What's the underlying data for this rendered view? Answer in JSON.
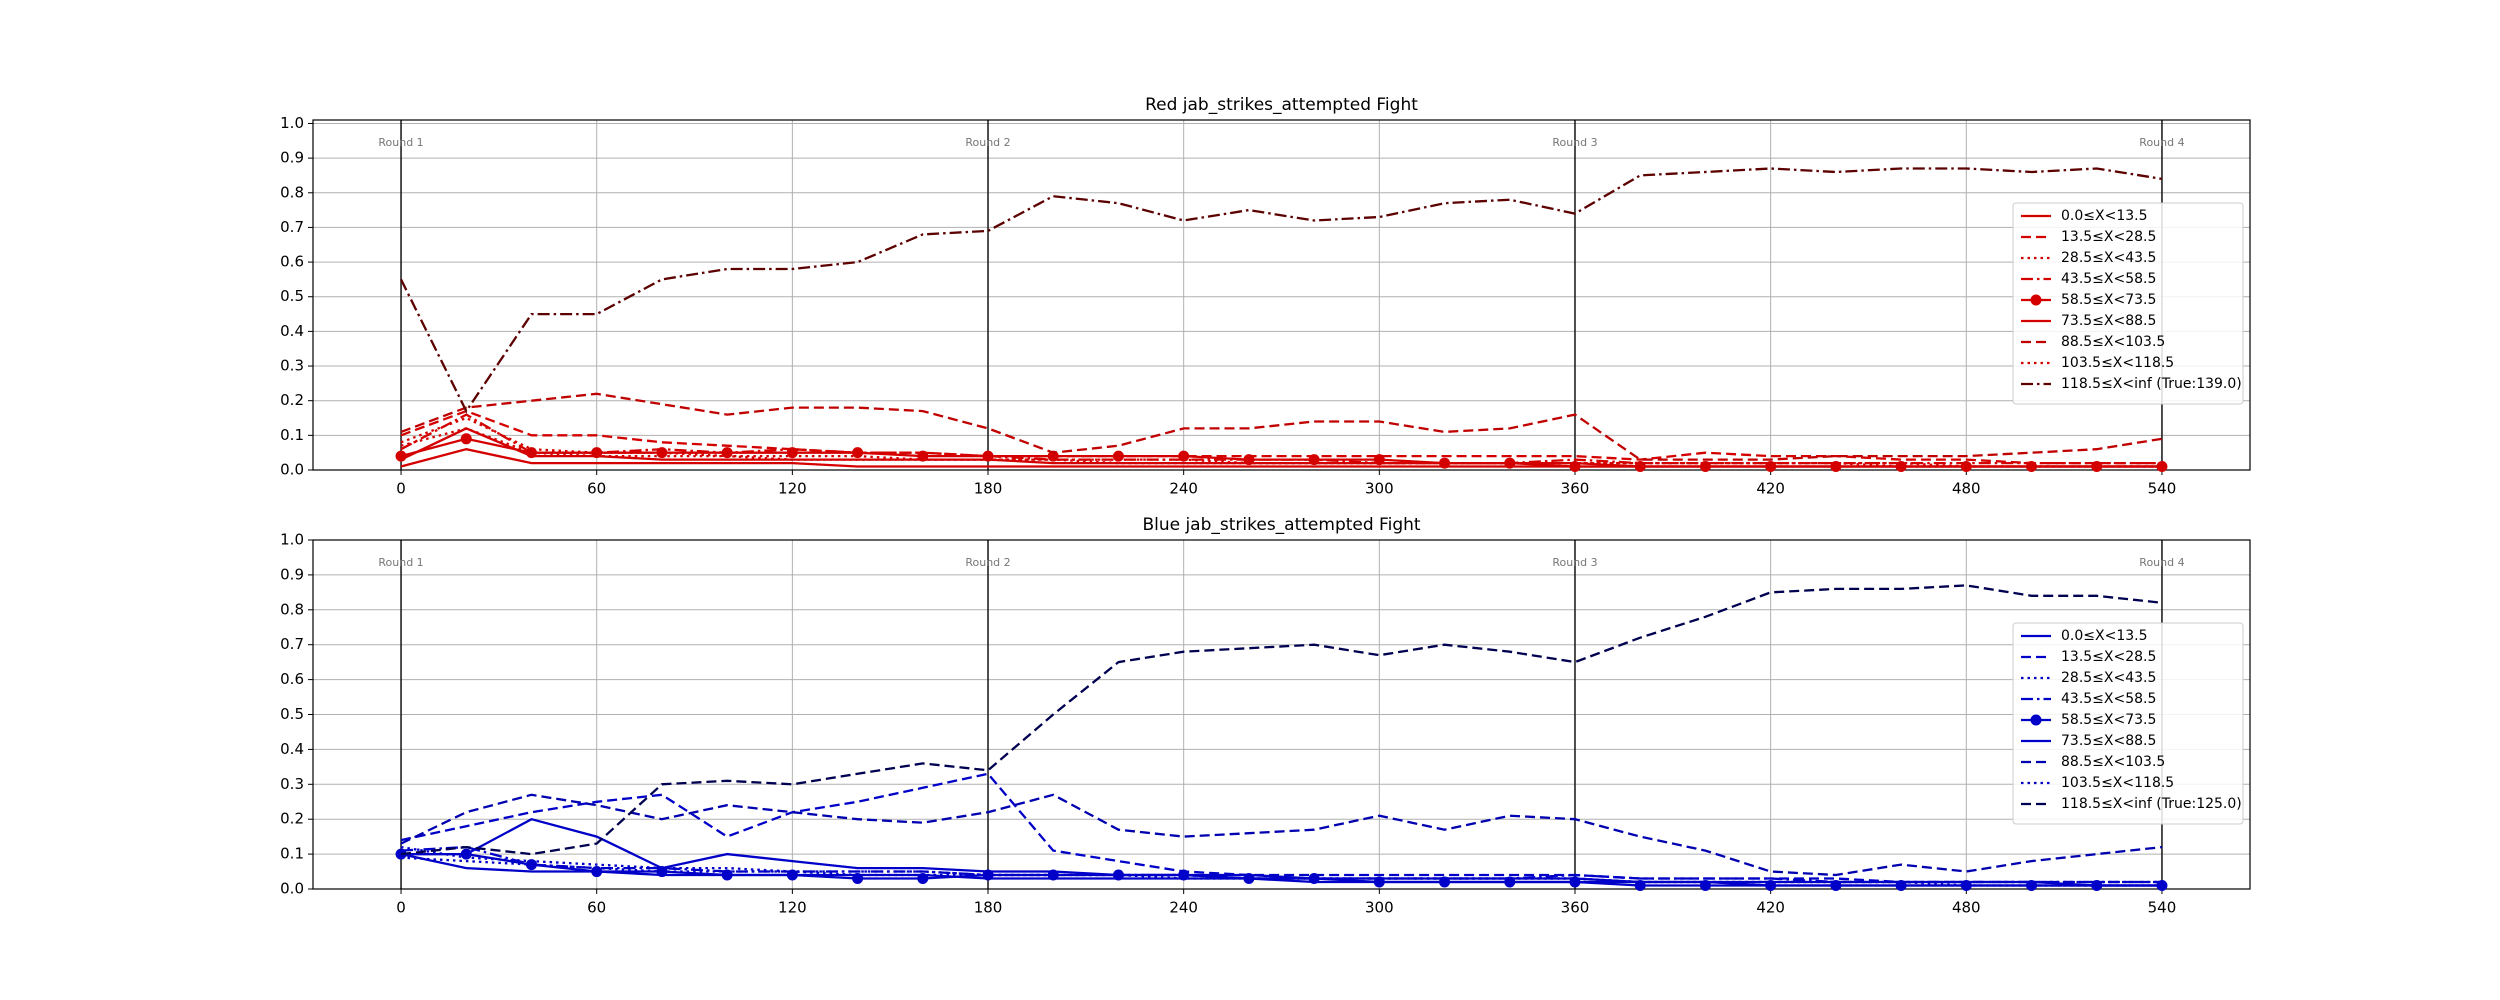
{
  "chart_data": [
    {
      "type": "line",
      "title": "Red jab_strikes_attempted Fight",
      "x": [
        0,
        20,
        40,
        60,
        80,
        100,
        120,
        140,
        160,
        180,
        200,
        220,
        240,
        260,
        280,
        300,
        320,
        340,
        360,
        380,
        400,
        420,
        440,
        460,
        480,
        500,
        520,
        540
      ],
      "xlim": [
        -27,
        567
      ],
      "xticks": [
        0,
        60,
        120,
        180,
        240,
        300,
        360,
        420,
        480,
        540
      ],
      "ylim": [
        0,
        1.01
      ],
      "yticks": [
        {
          "value": 0,
          "label": "0.0"
        },
        {
          "value": 0.1,
          "label": "0.1"
        },
        {
          "value": 0.2,
          "label": "0.2"
        },
        {
          "value": 0.3,
          "label": "0.3"
        },
        {
          "value": 0.4,
          "label": "0.4"
        },
        {
          "value": 0.5,
          "label": "0.5"
        },
        {
          "value": 0.6,
          "label": "0.6"
        },
        {
          "value": 0.7,
          "label": "0.7"
        },
        {
          "value": 0.8,
          "label": "0.8"
        },
        {
          "value": 0.9,
          "label": "0.9"
        },
        {
          "value": 1,
          "label": "1.0"
        }
      ],
      "grid": true,
      "legend": "right",
      "rounds": [
        {
          "x": 0,
          "label": "Round 1"
        },
        {
          "x": 180,
          "label": "Round 2"
        },
        {
          "x": 360,
          "label": "Round 3"
        },
        {
          "x": 540,
          "label": "Round 4"
        }
      ],
      "series": [
        {
          "name": "0.0≤X<13.5",
          "color": "#d40000",
          "linestyle": "solid",
          "values": [
            0.01,
            0.06,
            0.02,
            0.02,
            0.02,
            0.02,
            0.02,
            0.01,
            0.01,
            0.01,
            0.01,
            0.01,
            0.01,
            0.01,
            0.01,
            0.01,
            0.01,
            0.01,
            0.01,
            0.01,
            0.01,
            0.01,
            0.01,
            0.01,
            0.01,
            0.01,
            0.01,
            0.01
          ]
        },
        {
          "name": "13.5≤X<28.5",
          "color": "#d40000",
          "linestyle": "dashed",
          "values": [
            0.1,
            0.17,
            0.1,
            0.1,
            0.08,
            0.07,
            0.06,
            0.05,
            0.05,
            0.04,
            0.04,
            0.04,
            0.04,
            0.04,
            0.04,
            0.04,
            0.04,
            0.04,
            0.04,
            0.03,
            0.05,
            0.04,
            0.04,
            0.03,
            0.03,
            0.02,
            0.02,
            0.02
          ]
        },
        {
          "name": "28.5≤X<43.5",
          "color": "#d40000",
          "linestyle": "dotted",
          "values": [
            0.08,
            0.15,
            0.06,
            0.05,
            0.05,
            0.04,
            0.04,
            0.04,
            0.03,
            0.03,
            0.03,
            0.03,
            0.03,
            0.02,
            0.02,
            0.02,
            0.02,
            0.02,
            0.02,
            0.02,
            0.02,
            0.02,
            0.02,
            0.02,
            0.01,
            0.01,
            0.01,
            0.01
          ]
        },
        {
          "name": "43.5≤X<58.5",
          "color": "#d40000",
          "linestyle": "dashdot",
          "values": [
            0.06,
            0.16,
            0.05,
            0.05,
            0.06,
            0.05,
            0.06,
            0.05,
            0.05,
            0.04,
            0.03,
            0.03,
            0.03,
            0.03,
            0.03,
            0.02,
            0.02,
            0.02,
            0.03,
            0.02,
            0.02,
            0.02,
            0.02,
            0.02,
            0.02,
            0.02,
            0.02,
            0.02
          ]
        },
        {
          "name": "58.5≤X<73.5",
          "color": "#d40000",
          "linestyle": "solid",
          "marker": "o",
          "values": [
            0.04,
            0.09,
            0.05,
            0.05,
            0.05,
            0.05,
            0.05,
            0.05,
            0.04,
            0.04,
            0.04,
            0.04,
            0.04,
            0.03,
            0.03,
            0.03,
            0.02,
            0.02,
            0.01,
            0.01,
            0.01,
            0.01,
            0.01,
            0.01,
            0.01,
            0.01,
            0.01,
            0.01
          ]
        },
        {
          "name": "73.5≤X<88.5",
          "color": "#d40000",
          "linestyle": "solid",
          "values": [
            0.03,
            0.12,
            0.04,
            0.04,
            0.03,
            0.03,
            0.03,
            0.03,
            0.03,
            0.03,
            0.02,
            0.02,
            0.02,
            0.02,
            0.02,
            0.02,
            0.02,
            0.02,
            0.02,
            0.01,
            0.01,
            0.01,
            0.01,
            0.01,
            0.01,
            0.01,
            0.01,
            0.01
          ]
        },
        {
          "name": "88.5≤X<103.5",
          "color": "#c00000",
          "linestyle": "dashed",
          "values": [
            0.11,
            0.18,
            0.2,
            0.22,
            0.19,
            0.16,
            0.18,
            0.18,
            0.17,
            0.12,
            0.05,
            0.07,
            0.12,
            0.12,
            0.14,
            0.14,
            0.11,
            0.12,
            0.16,
            0.03,
            0.03,
            0.03,
            0.04,
            0.04,
            0.04,
            0.05,
            0.06,
            0.09
          ]
        },
        {
          "name": "103.5≤X<118.5",
          "color": "#d40000",
          "linestyle": "dotted",
          "values": [
            0.07,
            0.12,
            0.05,
            0.04,
            0.04,
            0.04,
            0.03,
            0.03,
            0.03,
            0.03,
            0.03,
            0.02,
            0.02,
            0.02,
            0.02,
            0.02,
            0.02,
            0.02,
            0.02,
            0.02,
            0.02,
            0.02,
            0.02,
            0.01,
            0.01,
            0.01,
            0.01,
            0.01
          ]
        },
        {
          "name": "118.5≤X<inf (True:139.0)",
          "color": "#5c0000",
          "linestyle": "dashdot",
          "values": [
            0.55,
            0.17,
            0.45,
            0.45,
            0.55,
            0.58,
            0.58,
            0.6,
            0.68,
            0.69,
            0.79,
            0.77,
            0.72,
            0.75,
            0.72,
            0.73,
            0.77,
            0.78,
            0.74,
            0.85,
            0.86,
            0.87,
            0.86,
            0.87,
            0.87,
            0.86,
            0.87,
            0.84
          ]
        }
      ]
    },
    {
      "type": "line",
      "title": "Blue jab_strikes_attempted Fight",
      "x": [
        0,
        20,
        40,
        60,
        80,
        100,
        120,
        140,
        160,
        180,
        200,
        220,
        240,
        260,
        280,
        300,
        320,
        340,
        360,
        380,
        400,
        420,
        440,
        460,
        480,
        500,
        520,
        540
      ],
      "xlim": [
        -27,
        567
      ],
      "xticks": [
        0,
        60,
        120,
        180,
        240,
        300,
        360,
        420,
        480,
        540
      ],
      "ylim": [
        0,
        1.0
      ],
      "yticks": [
        {
          "value": 0,
          "label": "0.0"
        },
        {
          "value": 0.1,
          "label": "0.1"
        },
        {
          "value": 0.2,
          "label": "0.2"
        },
        {
          "value": 0.3,
          "label": "0.3"
        },
        {
          "value": 0.4,
          "label": "0.4"
        },
        {
          "value": 0.5,
          "label": "0.5"
        },
        {
          "value": 0.6,
          "label": "0.6"
        },
        {
          "value": 0.7,
          "label": "0.7"
        },
        {
          "value": 0.8,
          "label": "0.8"
        },
        {
          "value": 0.9,
          "label": "0.9"
        },
        {
          "value": 1,
          "label": "1.0"
        }
      ],
      "grid": true,
      "legend": "right",
      "rounds": [
        {
          "x": 0,
          "label": "Round 1"
        },
        {
          "x": 180,
          "label": "Round 2"
        },
        {
          "x": 360,
          "label": "Round 3"
        },
        {
          "x": 540,
          "label": "Round 4"
        }
      ],
      "series": [
        {
          "name": "0.0≤X<13.5",
          "color": "#0000c8",
          "linestyle": "solid",
          "values": [
            0.1,
            0.06,
            0.05,
            0.05,
            0.04,
            0.04,
            0.04,
            0.04,
            0.04,
            0.03,
            0.03,
            0.03,
            0.03,
            0.03,
            0.02,
            0.02,
            0.02,
            0.02,
            0.02,
            0.02,
            0.02,
            0.01,
            0.01,
            0.01,
            0.01,
            0.01,
            0.01,
            0.01
          ]
        },
        {
          "name": "13.5≤X<28.5",
          "color": "#0000c8",
          "linestyle": "dashed",
          "values": [
            0.14,
            0.18,
            0.22,
            0.25,
            0.27,
            0.15,
            0.22,
            0.25,
            0.29,
            0.33,
            0.11,
            0.08,
            0.05,
            0.04,
            0.04,
            0.04,
            0.04,
            0.04,
            0.04,
            0.03,
            0.03,
            0.03,
            0.03,
            0.02,
            0.02,
            0.02,
            0.02,
            0.02
          ]
        },
        {
          "name": "28.5≤X<43.5",
          "color": "#0000c8",
          "linestyle": "dotted",
          "values": [
            0.12,
            0.09,
            0.08,
            0.07,
            0.06,
            0.06,
            0.05,
            0.05,
            0.05,
            0.04,
            0.04,
            0.04,
            0.04,
            0.03,
            0.03,
            0.03,
            0.03,
            0.03,
            0.03,
            0.02,
            0.02,
            0.02,
            0.02,
            0.02,
            0.02,
            0.02,
            0.02,
            0.02
          ]
        },
        {
          "name": "43.5≤X<58.5",
          "color": "#0000c8",
          "linestyle": "dashdot",
          "values": [
            0.11,
            0.12,
            0.07,
            0.06,
            0.06,
            0.05,
            0.05,
            0.05,
            0.05,
            0.04,
            0.04,
            0.04,
            0.04,
            0.03,
            0.03,
            0.03,
            0.03,
            0.03,
            0.04,
            0.03,
            0.03,
            0.03,
            0.02,
            0.02,
            0.02,
            0.02,
            0.02,
            0.02
          ]
        },
        {
          "name": "58.5≤X<73.5",
          "color": "#0000c8",
          "linestyle": "solid",
          "marker": "o",
          "values": [
            0.1,
            0.1,
            0.07,
            0.05,
            0.05,
            0.04,
            0.04,
            0.03,
            0.03,
            0.04,
            0.04,
            0.04,
            0.04,
            0.03,
            0.03,
            0.02,
            0.02,
            0.02,
            0.02,
            0.01,
            0.01,
            0.01,
            0.01,
            0.01,
            0.01,
            0.01,
            0.01,
            0.01
          ]
        },
        {
          "name": "73.5≤X<88.5",
          "color": "#0000c8",
          "linestyle": "solid",
          "values": [
            0.1,
            0.1,
            0.2,
            0.15,
            0.06,
            0.1,
            0.08,
            0.06,
            0.06,
            0.05,
            0.05,
            0.04,
            0.04,
            0.04,
            0.03,
            0.03,
            0.03,
            0.03,
            0.03,
            0.02,
            0.02,
            0.02,
            0.02,
            0.02,
            0.02,
            0.02,
            0.01,
            0.01
          ]
        },
        {
          "name": "88.5≤X<103.5",
          "color": "#0000b0",
          "linestyle": "dashed",
          "values": [
            0.13,
            0.22,
            0.27,
            0.24,
            0.2,
            0.24,
            0.22,
            0.2,
            0.19,
            0.22,
            0.27,
            0.17,
            0.15,
            0.16,
            0.17,
            0.21,
            0.17,
            0.21,
            0.2,
            0.15,
            0.11,
            0.05,
            0.04,
            0.07,
            0.05,
            0.08,
            0.1,
            0.12
          ]
        },
        {
          "name": "103.5≤X<118.5",
          "color": "#0000c8",
          "linestyle": "dotted",
          "values": [
            0.09,
            0.08,
            0.07,
            0.06,
            0.05,
            0.05,
            0.05,
            0.04,
            0.04,
            0.04,
            0.04,
            0.04,
            0.03,
            0.03,
            0.03,
            0.03,
            0.03,
            0.03,
            0.03,
            0.02,
            0.02,
            0.02,
            0.02,
            0.02,
            0.01,
            0.01,
            0.01,
            0.01
          ]
        },
        {
          "name": "118.5≤X<inf (True:125.0)",
          "color": "#000050",
          "linestyle": "dashed",
          "values": [
            0.1,
            0.12,
            0.1,
            0.13,
            0.3,
            0.31,
            0.3,
            0.33,
            0.36,
            0.34,
            0.5,
            0.65,
            0.68,
            0.69,
            0.7,
            0.67,
            0.7,
            0.68,
            0.65,
            0.72,
            0.78,
            0.85,
            0.86,
            0.86,
            0.87,
            0.84,
            0.84,
            0.82
          ]
        }
      ]
    }
  ]
}
